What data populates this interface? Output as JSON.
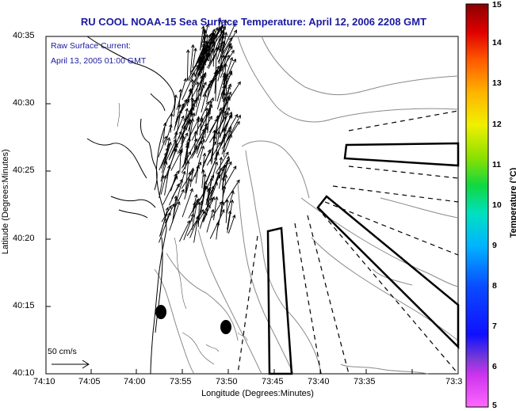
{
  "title": "RU COOL  NOAA-15  Sea Surface Temperature:  April 12, 2006 2208 GMT",
  "legend": {
    "line1": "Raw Surface Current:",
    "line2": "April 13, 2005 01:00 GMT"
  },
  "scale_label": "50 cm/s",
  "xaxis": {
    "label": "Longitude (Degrees:Minutes)",
    "ticks": [
      "74:10",
      "74:05",
      "74:00",
      "73:55",
      "73:50",
      "73:45",
      "73:40",
      "73:35",
      "73:3"
    ]
  },
  "yaxis": {
    "label": "Latitude (Degrees:Minutes)",
    "ticks": [
      "40:35",
      "40:30",
      "40:25",
      "40:20",
      "40:15",
      "40:10"
    ]
  },
  "colorbar": {
    "label": "Temperature (°C)",
    "ticks": [
      "15",
      "14",
      "13",
      "12",
      "11",
      "10",
      "9",
      "8",
      "7",
      "6",
      "5"
    ],
    "range": [
      5,
      15
    ]
  },
  "colors": {
    "title": "#1a1aa0",
    "coastline": "#000000",
    "bathymetry": "#888888",
    "vectors": "#000000"
  },
  "map_features": {
    "coastline": "present",
    "bathymetry_contours": "present",
    "current_vectors": "present",
    "radar_beam_lines": "dashed",
    "boxes": "3 outlined polygons",
    "markers": "2 filled ovals"
  }
}
